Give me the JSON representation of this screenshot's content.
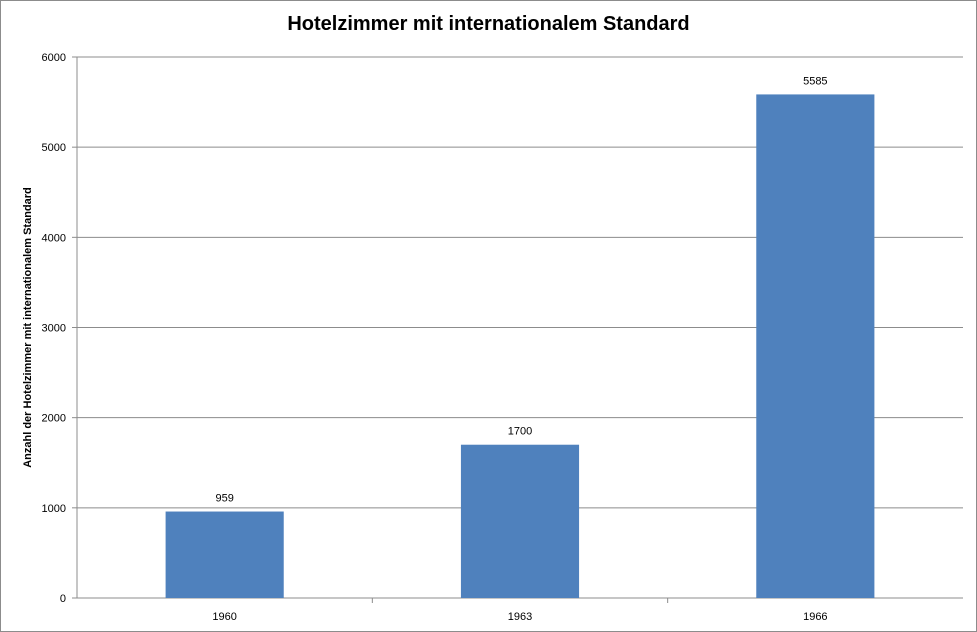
{
  "chart_data": {
    "type": "bar",
    "title": "Hotelzimmer mit internationalem Standard",
    "xlabel": "",
    "ylabel": "Anzahl der Hotelzimmer mit internationalem Standard",
    "categories": [
      "1960",
      "1963",
      "1966"
    ],
    "values": [
      959,
      1700,
      5585
    ],
    "data_labels": [
      "959",
      "1700",
      "5585"
    ],
    "ylim": [
      0,
      6000
    ],
    "yticks": [
      0,
      1000,
      2000,
      3000,
      4000,
      5000,
      6000
    ],
    "grid": true,
    "legend": "none",
    "bar_color": "#4f81bd"
  }
}
